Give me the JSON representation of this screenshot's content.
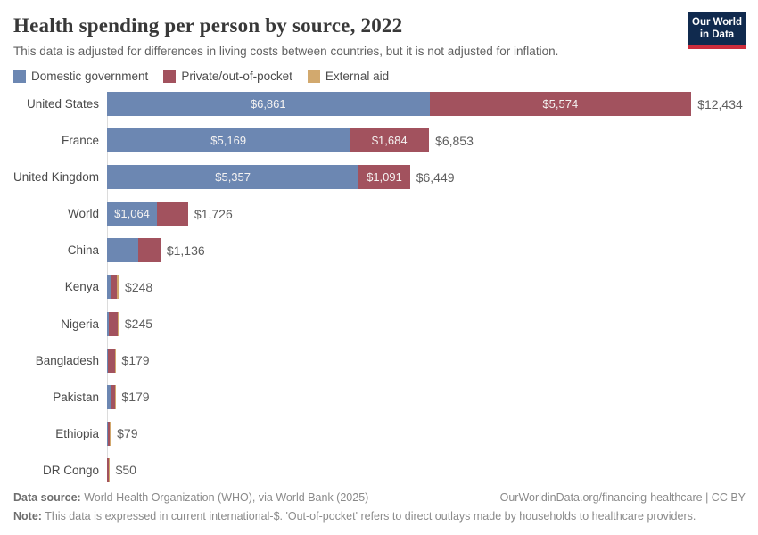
{
  "header": {
    "title": "Health spending per person by source, 2022",
    "subtitle": "This data is adjusted for differences in living costs between countries, but it is not adjusted for inflation.",
    "logo": {
      "line1": "Our World",
      "line2": "in Data"
    }
  },
  "legend": [
    {
      "label": "Domestic government",
      "color": "#6c87b2"
    },
    {
      "label": "Private/out-of-pocket",
      "color": "#a2525e"
    },
    {
      "label": "External aid",
      "color": "#d2a96e"
    }
  ],
  "chart_data": {
    "type": "bar",
    "orientation": "horizontal",
    "stacked": true,
    "title": "Health spending per person by source, 2022",
    "unit": "international-$",
    "series_names": [
      "Domestic government",
      "Private/out-of-pocket",
      "External aid"
    ],
    "series_colors": [
      "#6c87b2",
      "#a2525e",
      "#d2a96e"
    ],
    "xmax": 12434,
    "bar_area_fraction": 0.915,
    "grid": false,
    "legend_position": "top",
    "rows": [
      {
        "country": "United States",
        "values": [
          6861,
          5574,
          0
        ],
        "segment_labels": [
          "$6,861",
          "$5,574",
          ""
        ],
        "total": 12434,
        "total_label": "$12,434"
      },
      {
        "country": "France",
        "values": [
          5169,
          1684,
          0
        ],
        "segment_labels": [
          "$5,169",
          "$1,684",
          ""
        ],
        "total": 6853,
        "total_label": "$6,853"
      },
      {
        "country": "United Kingdom",
        "values": [
          5357,
          1091,
          0
        ],
        "segment_labels": [
          "$5,357",
          "$1,091",
          ""
        ],
        "total": 6449,
        "total_label": "$6,449"
      },
      {
        "country": "World",
        "values": [
          1064,
          662,
          0
        ],
        "segment_labels": [
          "$1,064",
          "",
          ""
        ],
        "total": 1726,
        "total_label": "$1,726"
      },
      {
        "country": "China",
        "values": [
          660,
          476,
          0
        ],
        "segment_labels": [
          "",
          "",
          ""
        ],
        "total": 1136,
        "total_label": "$1,136"
      },
      {
        "country": "Kenya",
        "values": [
          95,
          115,
          38
        ],
        "segment_labels": [
          "",
          "",
          ""
        ],
        "total": 248,
        "total_label": "$248"
      },
      {
        "country": "Nigeria",
        "values": [
          32,
          193,
          20
        ],
        "segment_labels": [
          "",
          "",
          ""
        ],
        "total": 245,
        "total_label": "$245"
      },
      {
        "country": "Bangladesh",
        "values": [
          22,
          143,
          14
        ],
        "segment_labels": [
          "",
          "",
          ""
        ],
        "total": 179,
        "total_label": "$179"
      },
      {
        "country": "Pakistan",
        "values": [
          70,
          100,
          9
        ],
        "segment_labels": [
          "",
          "",
          ""
        ],
        "total": 179,
        "total_label": "$179"
      },
      {
        "country": "Ethiopia",
        "values": [
          16,
          50,
          13
        ],
        "segment_labels": [
          "",
          "",
          ""
        ],
        "total": 79,
        "total_label": "$79"
      },
      {
        "country": "DR Congo",
        "values": [
          9,
          28,
          13
        ],
        "segment_labels": [
          "",
          "",
          ""
        ],
        "total": 50,
        "total_label": "$50"
      }
    ]
  },
  "footer": {
    "datasource_label": "Data source:",
    "datasource_text": " World Health Organization (WHO), via World Bank (2025)",
    "link_text": "OurWorldinData.org/financing-healthcare | CC BY",
    "note_label": "Note:",
    "note_text": " This data is expressed in current international-$. 'Out-of-pocket' refers to direct outlays made by households to healthcare providers."
  }
}
